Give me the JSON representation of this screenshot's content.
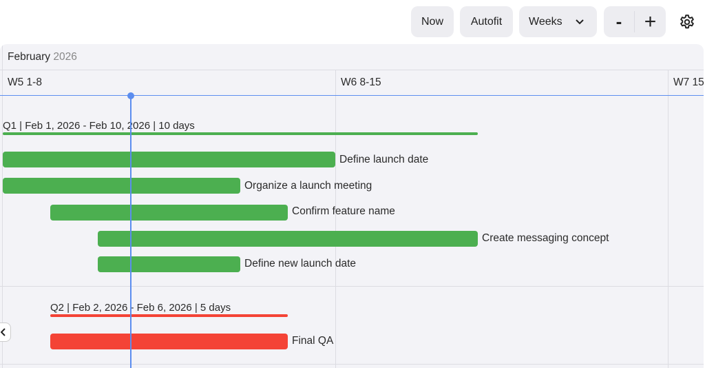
{
  "toolbar": {
    "now": "Now",
    "autofit": "Autofit",
    "scale": "Weeks",
    "zoom_out": "-",
    "zoom_in": "+"
  },
  "header": {
    "month": "February",
    "year": "2026",
    "weeks": [
      "W5 1-8",
      "W6 8-15",
      "W7 15"
    ]
  },
  "colors": {
    "green": "#4caf50",
    "red": "#f44336",
    "today": "#5b8def"
  },
  "groups": [
    {
      "label": "Q1 | Feb 1, 2026 - Feb 10, 2026 | 10 days",
      "tasks": [
        "Define launch date",
        "Organize a launch meeting",
        "Confirm feature name",
        "Create messaging concept",
        "Define new launch date"
      ]
    },
    {
      "label": "Q2 | Feb 2, 2026 - Feb 6, 2026 | 5 days",
      "tasks": [
        "Final QA"
      ]
    }
  ]
}
